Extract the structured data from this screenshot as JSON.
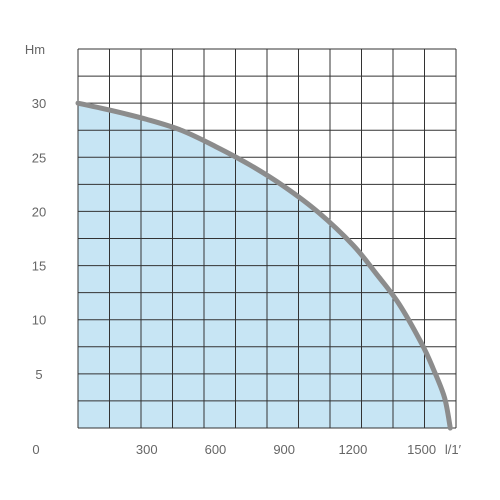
{
  "chart_data": {
    "type": "area",
    "title": "",
    "ylabel": "Hm",
    "xlabel": "l/1′",
    "origin_label": "0",
    "xlim": [
      0,
      1650
    ],
    "ylim": [
      0,
      35
    ],
    "x_ticks": [
      "300",
      "600",
      "900",
      "1200",
      "1500"
    ],
    "x_tick_values": [
      300,
      600,
      900,
      1200,
      1500
    ],
    "y_ticks": [
      "30",
      "25",
      "20",
      "15",
      "10",
      "5"
    ],
    "y_tick_values": [
      30,
      25,
      20,
      15,
      10,
      5
    ],
    "grid": true,
    "series": [
      {
        "x": [
          0,
          150,
          300,
          450,
          600,
          750,
          900,
          1050,
          1200,
          1300,
          1400,
          1500,
          1550,
          1600,
          1625
        ],
        "y": [
          30,
          29.3,
          28.5,
          27.5,
          26,
          24.3,
          22.3,
          19.9,
          16.9,
          14.3,
          11.5,
          7.8,
          5.5,
          2.8,
          0
        ]
      }
    ],
    "colors": {
      "fill": "#c7e5f4",
      "curve": "#8c8c8c",
      "grid": "#333333",
      "text": "#666666"
    }
  }
}
